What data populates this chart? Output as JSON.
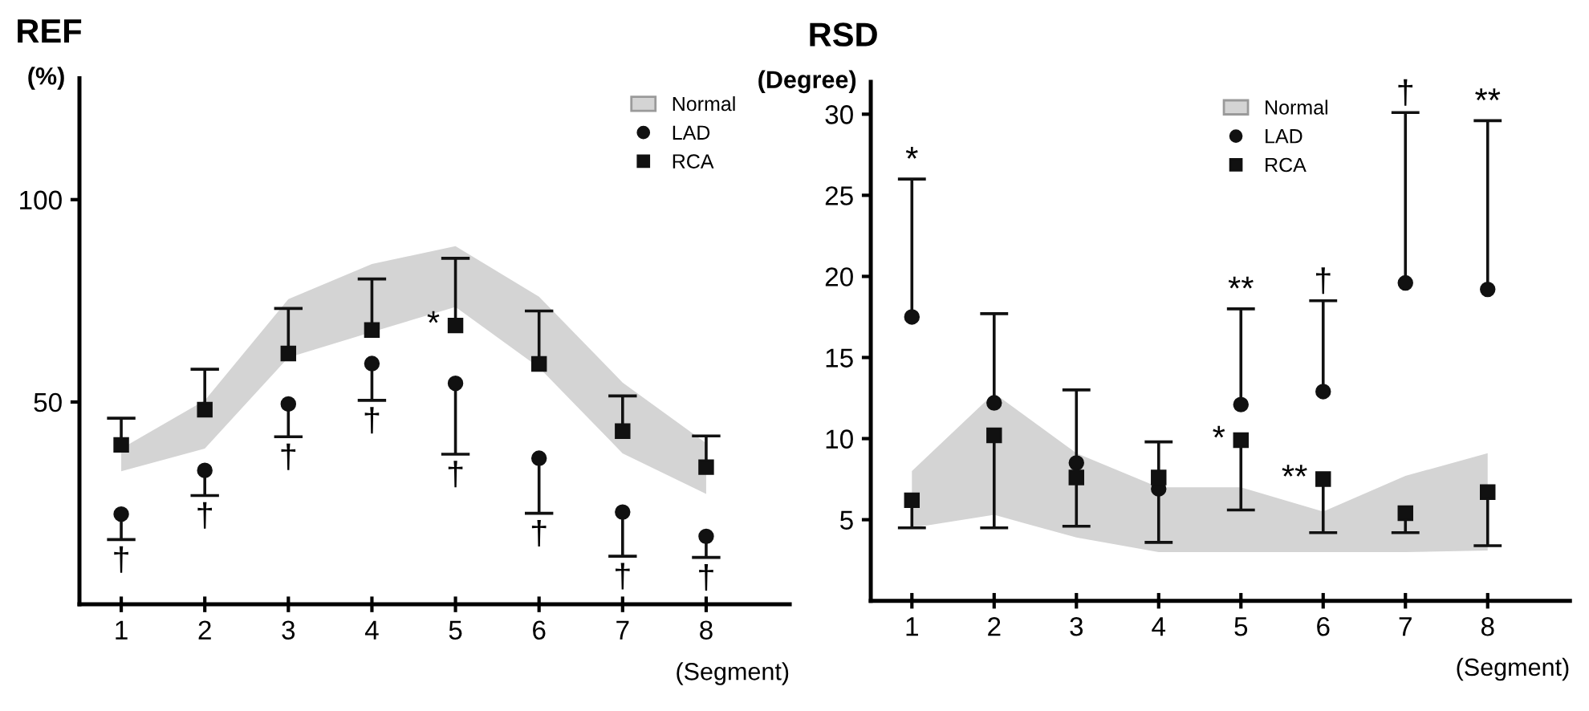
{
  "chart_data": [
    {
      "type": "scatter",
      "title": "REF",
      "ylabel": "(%)",
      "xlabel": "(Segment)",
      "x": [
        1,
        2,
        3,
        4,
        5,
        6,
        7,
        8
      ],
      "xlim": [
        0.5,
        9
      ],
      "xticks": [
        1,
        2,
        3,
        4,
        5,
        6,
        7,
        8
      ],
      "ylim": [
        0,
        130
      ],
      "yticks": [
        50,
        100
      ],
      "grid": false,
      "legend": "top right",
      "series": [
        {
          "name": "Normal",
          "type": "area",
          "color": "#d4d4d4",
          "values": [
            null,
            null,
            null,
            null,
            null,
            null,
            null,
            null
          ],
          "upper": [
            38.5,
            50.4,
            75.4,
            84.1,
            88.5,
            76,
            54.8,
            39.8
          ],
          "lower": [
            32.9,
            38.5,
            61,
            67.3,
            73.5,
            58.5,
            37.3,
            27.3
          ]
        },
        {
          "name": "LAD",
          "marker": "circle",
          "color": "#111111",
          "values": [
            22.3,
            33.1,
            49.5,
            59.5,
            54.6,
            36.1,
            22.8,
            16.8
          ],
          "errors": [
            [
              16,
              22.3
            ],
            [
              26.9,
              33.1
            ],
            [
              41.4,
              49.5
            ],
            [
              50.4,
              59.5
            ],
            [
              37.1,
              54.6
            ],
            [
              22.5,
              36.1
            ],
            [
              11.9,
              22.8
            ],
            [
              11.6,
              16.8
            ]
          ]
        },
        {
          "name": "RCA",
          "marker": "square",
          "color": "#111111",
          "values": [
            39.4,
            48.1,
            62,
            67.8,
            68.9,
            59.4,
            42.8,
            33.9
          ],
          "errors": [
            [
              39.4,
              46
            ],
            [
              48.1,
              58.1
            ],
            [
              62,
              73.1
            ],
            [
              67.8,
              80.4
            ],
            [
              68.9,
              85.5
            ],
            [
              59.4,
              72.5
            ],
            [
              42.8,
              51.5
            ],
            [
              33.9,
              41.6
            ]
          ]
        }
      ],
      "annotations": [
        {
          "text": "†",
          "x": 1,
          "y": 16
        },
        {
          "text": "†",
          "x": 2,
          "y": 26.9
        },
        {
          "text": "†",
          "x": 3,
          "y": 41.4
        },
        {
          "text": "†",
          "x": 4,
          "y": 50.4
        },
        {
          "text": "†",
          "x": 5,
          "y": 37.1
        },
        {
          "text": "†",
          "x": 6,
          "y": 22.5
        },
        {
          "text": "†",
          "x": 7,
          "y": 11.9
        },
        {
          "text": "†",
          "x": 8,
          "y": 11.6
        },
        {
          "text": "*",
          "x": 5,
          "y": 68.9
        }
      ]
    },
    {
      "type": "scatter",
      "title": "RSD",
      "ylabel": "(Degree)",
      "xlabel": "(Segment)",
      "x": [
        1,
        2,
        3,
        4,
        5,
        6,
        7,
        8
      ],
      "xlim": [
        0.5,
        9
      ],
      "xticks": [
        1,
        2,
        3,
        4,
        5,
        6,
        7,
        8
      ],
      "ylim": [
        0,
        32
      ],
      "yticks": [
        5,
        10,
        15,
        20,
        25,
        30
      ],
      "grid": false,
      "legend": "top",
      "series": [
        {
          "name": "Normal",
          "type": "area",
          "color": "#d4d4d4",
          "values": [
            null,
            null,
            null,
            null,
            null,
            null,
            null,
            null
          ],
          "upper": [
            8.0,
            12.8,
            9.1,
            7.0,
            7.0,
            5.5,
            7.7,
            9.1
          ],
          "lower": [
            4.5,
            5.3,
            3.9,
            3.0,
            3.0,
            3.0,
            3.0,
            3.1
          ]
        },
        {
          "name": "LAD",
          "marker": "circle",
          "color": "#111111",
          "values": [
            17.5,
            12.2,
            8.5,
            6.9,
            12.1,
            12.9,
            19.6,
            19.2
          ],
          "errors": [
            [
              17.5,
              26
            ],
            [
              12.2,
              17.7
            ],
            [
              8.5,
              13
            ],
            [
              6.9,
              9.8
            ],
            [
              12.1,
              18
            ],
            [
              12.9,
              18.5
            ],
            [
              19.6,
              30.1
            ],
            [
              19.2,
              29.6
            ]
          ]
        },
        {
          "name": "RCA",
          "marker": "square",
          "color": "#111111",
          "values": [
            6.2,
            10.2,
            7.6,
            7.6,
            9.9,
            7.5,
            5.4,
            6.7
          ],
          "errors": [
            [
              4.5,
              6.2
            ],
            [
              4.5,
              10.2
            ],
            [
              4.6,
              7.6
            ],
            [
              3.6,
              7.6
            ],
            [
              5.6,
              9.9
            ],
            [
              4.2,
              7.5
            ],
            [
              4.2,
              5.4
            ],
            [
              3.4,
              6.7
            ]
          ]
        }
      ],
      "annotations": [
        {
          "text": "*",
          "x": 1,
          "y": 26
        },
        {
          "text": "**",
          "x": 5,
          "y": 18
        },
        {
          "text": "†",
          "x": 6,
          "y": 18.5
        },
        {
          "text": "†",
          "x": 7,
          "y": 30.1
        },
        {
          "text": "**",
          "x": 8,
          "y": 29.6
        },
        {
          "text": "*",
          "x": 5,
          "y": 9.9
        },
        {
          "text": "**",
          "x": 6,
          "y": 7.5
        }
      ]
    }
  ]
}
